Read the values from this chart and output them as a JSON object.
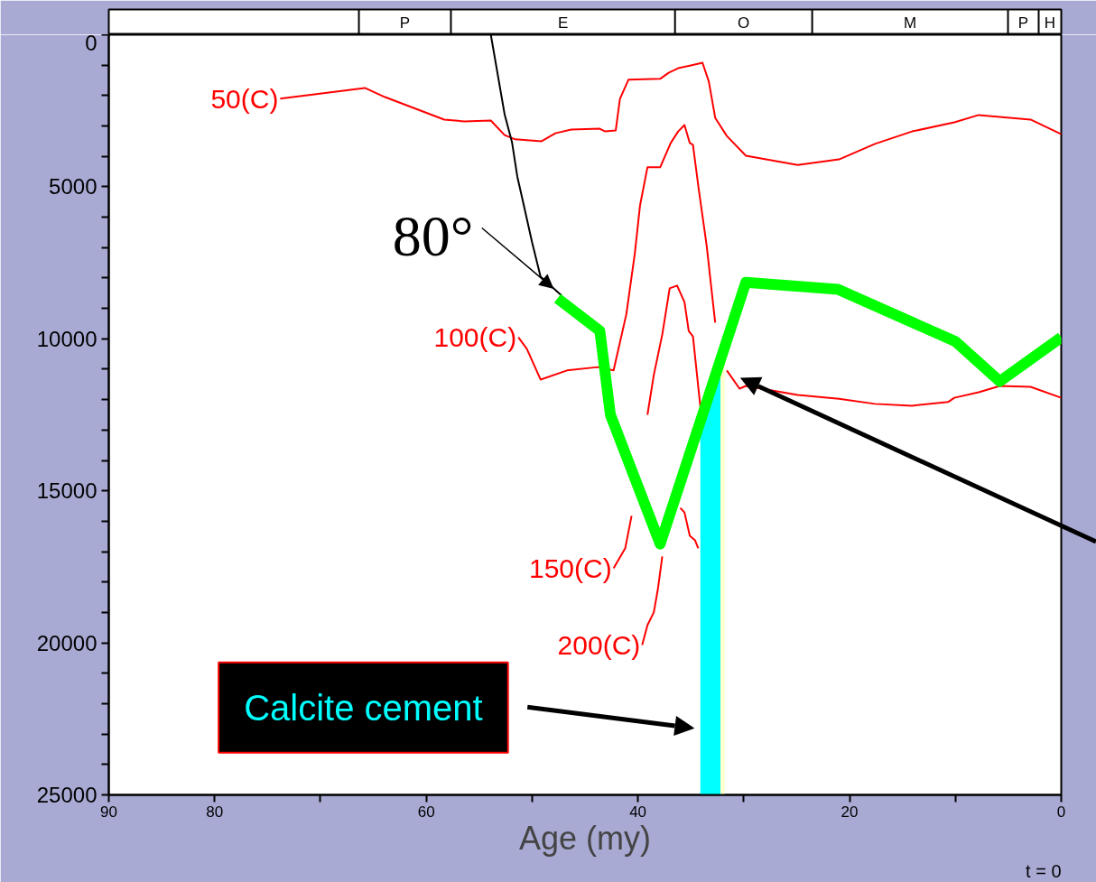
{
  "chart_data": [
    {
      "type": "other",
      "categories": [
        null,
        "P",
        "E",
        "O",
        "M",
        "P",
        "H"
      ]
    },
    {
      "type": "line",
      "xlabel": "Age (my)",
      "xlim": [
        90,
        0
      ],
      "ylim": [
        25000,
        0
      ],
      "xticks": [
        90,
        80,
        {
          "value": 70,
          "label": null
        },
        60,
        {
          "value": 50,
          "label": null
        },
        40,
        {
          "value": 30,
          "label": null
        },
        20,
        {
          "value": 10,
          "label": null
        },
        0
      ],
      "yticks": [
        0,
        {
          "value": 1000,
          "label": null
        },
        {
          "value": 2000,
          "label": null
        },
        {
          "value": 3000,
          "label": null
        },
        {
          "value": 4000,
          "label": null
        },
        5000,
        {
          "value": 6000,
          "label": null
        },
        {
          "value": 7000,
          "label": null
        },
        {
          "value": 8000,
          "label": null
        },
        {
          "value": 9000,
          "label": null
        },
        10000,
        {
          "value": 11000,
          "label": null
        },
        {
          "value": 12000,
          "label": null
        },
        {
          "value": 13000,
          "label": null
        },
        {
          "value": 14000,
          "label": null
        },
        15000,
        {
          "value": 16000,
          "label": null
        },
        {
          "value": 17000,
          "label": null
        },
        {
          "value": 18000,
          "label": null
        },
        {
          "value": 19000,
          "label": null
        },
        20000,
        {
          "value": 21000,
          "label": null
        },
        {
          "value": 22000,
          "label": null
        },
        {
          "value": 23000,
          "label": null
        },
        {
          "value": 24000,
          "label": null
        },
        25000
      ],
      "grid": false,
      "legend": false,
      "marker": "none",
      "line_style": "solid",
      "annotations": [
        "80°",
        "Calcite cement",
        "t = 0"
      ],
      "series": [
        {
          "type": "line",
          "color": "#00ffff",
          "x": [
            34.1,
            32.2
          ],
          "values": [
            null,
            null
          ],
          "lower": [
            25000,
            25000
          ],
          "upper": [
            12890,
            10390
          ]
        },
        {
          "type": "line",
          "color": "#ffffcc",
          "x": [
            32.2,
            31.8
          ],
          "values": [
            null,
            null
          ],
          "lower": [
            25000,
            25000
          ],
          "upper": [
            10390,
            10300
          ]
        },
        {
          "name": "50(C)",
          "color": "#ff0000",
          "x": [
            73.8,
            65.8,
            63.9,
            58.3,
            56.4,
            53.9,
            52.6,
            51.6,
            49.1,
            47.8,
            46.3,
            43.6,
            43.1,
            42.1,
            41.7,
            40.9,
            37.9,
            37.1,
            36.2,
            35.0,
            33.9,
            33.3,
            32.7,
            31.6,
            29.8,
            24.9,
            21.0,
            17.6,
            14.1,
            10.1,
            7.8,
            2.9,
            0
          ],
          "values": [
            2100,
            1750,
            2050,
            2790,
            2850,
            2820,
            3300,
            3440,
            3500,
            3240,
            3120,
            3090,
            3180,
            3150,
            2110,
            1480,
            1450,
            1250,
            1100,
            1010,
            920,
            1540,
            2730,
            3330,
            3980,
            4280,
            4100,
            3590,
            3180,
            2880,
            2640,
            2790,
            3270
          ]
        },
        {
          "name": "100(C)",
          "color": "#ff0000",
          "x": [
            51.3,
            50.5,
            49.2,
            46.7,
            43.8,
            42.3,
            41.1,
            40.3,
            39.8,
            39.1,
            37.9,
            36.9,
            36.2,
            35.6,
            35.1,
            34.8,
            34.3,
            33.5,
            32.7,
            32.2,
            31.6,
            30.4,
            29.8,
            24.9,
            21.0,
            17.6,
            14.1,
            10.7,
            10.1,
            7.8,
            5.8,
            2.9,
            0
          ],
          "values": [
            9950,
            10330,
            11340,
            11040,
            10930,
            11040,
            9200,
            7210,
            5610,
            4360,
            4360,
            3560,
            3180,
            2970,
            3560,
            3620,
            4960,
            6950,
            9470,
            null,
            11040,
            11640,
            11550,
            11850,
            11970,
            12140,
            12200,
            12080,
            11940,
            11760,
            11550,
            11580,
            11940
          ]
        },
        {
          "name": "150(C)",
          "color": "#ff0000",
          "x": [
            42.3,
            41.2,
            40.6,
            40.2,
            39.1,
            38.5,
            37.7,
            37.0,
            36.3,
            35.6,
            35.2,
            34.8,
            34.3,
            34.1
          ],
          "values": [
            17550,
            16890,
            15820,
            null,
            12500,
            11190,
            9860,
            8340,
            8250,
            8790,
            9740,
            9920,
            11580,
            12230
          ]
        },
        {
          "name": "200(C)",
          "color": "#ff0000",
          "x": [
            39.6,
            39.1,
            38.5,
            38.1,
            37.7,
            37.0,
            36.0,
            35.6,
            35.1,
            34.6,
            34.3
          ],
          "values": [
            20070,
            19420,
            19000,
            18200,
            17160,
            null,
            15560,
            15710,
            16480,
            16630,
            16890
          ]
        },
        {
          "color": "#000000",
          "x": [
            53.9,
            52.6,
            51.9,
            51.4,
            50.8,
            50.0,
            49.2,
            47.2
          ],
          "values": [
            0,
            2610,
            3530,
            4660,
            5580,
            6830,
            7960,
            8580
          ]
        },
        {
          "color": "#00ff00",
          "x": [
            47.6,
            43.6,
            42.6,
            37.9,
            29.8,
            21.1,
            10.0,
            5.8,
            0
          ],
          "values": [
            8670,
            9740,
            12500,
            16750,
            8140,
            8370,
            10090,
            11400,
            9950
          ]
        }
      ]
    }
  ]
}
